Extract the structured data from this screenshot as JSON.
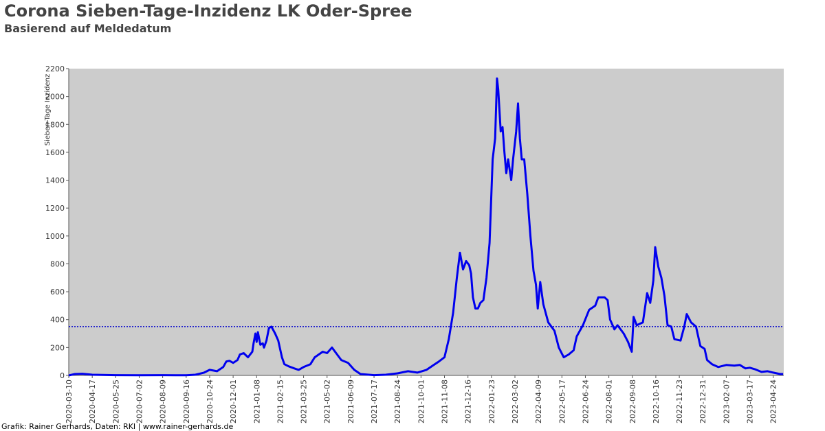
{
  "chart_data": {
    "type": "line",
    "title": "Corona Sieben-Tage-Inzidenz LK Oder-Spree",
    "subtitle": "Basierend auf Meldedatum",
    "y_label": "Sieben-Tage Inzidenz",
    "footer": "Grafik: Rainer Gerhards, Daten: RKI | www.rainer-gerhards.de",
    "color": "#0000ee",
    "threshold": 350,
    "threshold_color": "#0000cc",
    "x": [
      "2020-03-10",
      "2020-03-20",
      "2020-04-01",
      "2020-04-17",
      "2020-05-25",
      "2020-07-02",
      "2020-08-09",
      "2020-09-16",
      "2020-10-01",
      "2020-10-15",
      "2020-10-24",
      "2020-11-05",
      "2020-11-15",
      "2020-11-20",
      "2020-11-25",
      "2020-12-01",
      "2020-12-08",
      "2020-12-12",
      "2020-12-18",
      "2020-12-25",
      "2021-01-01",
      "2021-01-03",
      "2021-01-06",
      "2021-01-08",
      "2021-01-10",
      "2021-01-14",
      "2021-01-18",
      "2021-01-20",
      "2021-01-24",
      "2021-01-28",
      "2021-02-01",
      "2021-02-07",
      "2021-02-12",
      "2021-02-18",
      "2021-02-22",
      "2021-03-01",
      "2021-03-10",
      "2021-03-17",
      "2021-03-25",
      "2021-04-05",
      "2021-04-12",
      "2021-04-25",
      "2021-05-02",
      "2021-05-10",
      "2021-05-15",
      "2021-05-25",
      "2021-06-05",
      "2021-06-15",
      "2021-06-25",
      "2021-07-17",
      "2021-08-05",
      "2021-08-24",
      "2021-09-10",
      "2021-09-25",
      "2021-10-10",
      "2021-10-20",
      "2021-10-30",
      "2021-11-08",
      "2021-11-15",
      "2021-11-22",
      "2021-11-28",
      "2021-12-03",
      "2021-12-08",
      "2021-12-13",
      "2021-12-18",
      "2021-12-21",
      "2021-12-24",
      "2021-12-28",
      "2022-01-01",
      "2022-01-05",
      "2022-01-10",
      "2022-01-15",
      "2022-01-20",
      "2022-01-25",
      "2022-01-29",
      "2022-02-01",
      "2022-02-03",
      "2022-02-07",
      "2022-02-10",
      "2022-02-13",
      "2022-02-16",
      "2022-02-19",
      "2022-02-24",
      "2022-02-27",
      "2022-03-04",
      "2022-03-07",
      "2022-03-10",
      "2022-03-13",
      "2022-03-17",
      "2022-03-22",
      "2022-03-27",
      "2022-04-01",
      "2022-04-05",
      "2022-04-08",
      "2022-04-12",
      "2022-04-17",
      "2022-04-25",
      "2022-05-05",
      "2022-05-12",
      "2022-05-20",
      "2022-05-28",
      "2022-06-05",
      "2022-06-10",
      "2022-06-20",
      "2022-06-30",
      "2022-07-10",
      "2022-07-15",
      "2022-07-25",
      "2022-07-30",
      "2022-08-03",
      "2022-08-10",
      "2022-08-15",
      "2022-08-25",
      "2022-09-01",
      "2022-09-07",
      "2022-09-10",
      "2022-09-15",
      "2022-09-25",
      "2022-10-02",
      "2022-10-07",
      "2022-10-12",
      "2022-10-15",
      "2022-10-20",
      "2022-10-25",
      "2022-10-30",
      "2022-11-04",
      "2022-11-10",
      "2022-11-15",
      "2022-11-25",
      "2022-12-01",
      "2022-12-05",
      "2022-12-12",
      "2022-12-20",
      "2022-12-27",
      "2023-01-03",
      "2023-01-07",
      "2023-01-15",
      "2023-01-25",
      "2023-02-07",
      "2023-02-20",
      "2023-03-01",
      "2023-03-10",
      "2023-03-17",
      "2023-03-25",
      "2023-04-05",
      "2023-04-15",
      "2023-04-24",
      "2023-05-05",
      "2023-05-10"
    ],
    "values": [
      0,
      10,
      12,
      5,
      2,
      1,
      2,
      1,
      5,
      20,
      40,
      30,
      60,
      100,
      105,
      90,
      110,
      150,
      160,
      130,
      170,
      230,
      300,
      240,
      310,
      220,
      230,
      200,
      250,
      340,
      350,
      300,
      250,
      130,
      80,
      65,
      50,
      40,
      60,
      80,
      130,
      170,
      160,
      200,
      170,
      110,
      90,
      40,
      10,
      2,
      5,
      15,
      30,
      20,
      40,
      70,
      100,
      130,
      260,
      450,
      700,
      880,
      760,
      820,
      790,
      730,
      560,
      480,
      480,
      520,
      540,
      700,
      950,
      1550,
      1700,
      2130,
      2050,
      1750,
      1780,
      1600,
      1450,
      1550,
      1400,
      1550,
      1750,
      1950,
      1700,
      1550,
      1550,
      1300,
      1000,
      750,
      650,
      480,
      670,
      510,
      380,
      320,
      200,
      130,
      150,
      180,
      280,
      360,
      470,
      500,
      560,
      560,
      540,
      400,
      330,
      360,
      300,
      240,
      170,
      420,
      360,
      380,
      590,
      520,
      680,
      920,
      780,
      700,
      570,
      360,
      350,
      260,
      250,
      350,
      440,
      380,
      350,
      210,
      190,
      110,
      80,
      60,
      75,
      70,
      75,
      50,
      55,
      45,
      25,
      30,
      20,
      10,
      10
    ],
    "xlim": [
      "2020-03-10",
      "2023-05-11"
    ],
    "xticks": [
      "2020-03-10",
      "2020-04-17",
      "2020-05-25",
      "2020-07-02",
      "2020-08-09",
      "2020-09-16",
      "2020-10-24",
      "2020-12-01",
      "2021-01-08",
      "2021-02-15",
      "2021-03-25",
      "2021-05-02",
      "2021-06-09",
      "2021-07-17",
      "2021-08-24",
      "2021-10-01",
      "2021-11-08",
      "2021-12-16",
      "2022-01-23",
      "2022-03-02",
      "2022-04-09",
      "2022-05-17",
      "2022-06-24",
      "2022-08-01",
      "2022-09-08",
      "2022-10-16",
      "2022-11-23",
      "2022-12-31",
      "2023-02-07",
      "2023-03-17",
      "2023-04-24"
    ],
    "ylim": [
      0,
      2200
    ],
    "yticks": [
      0,
      200,
      400,
      600,
      800,
      1000,
      1200,
      1400,
      1600,
      1800,
      2000,
      2200
    ],
    "background": "#cccccc"
  }
}
